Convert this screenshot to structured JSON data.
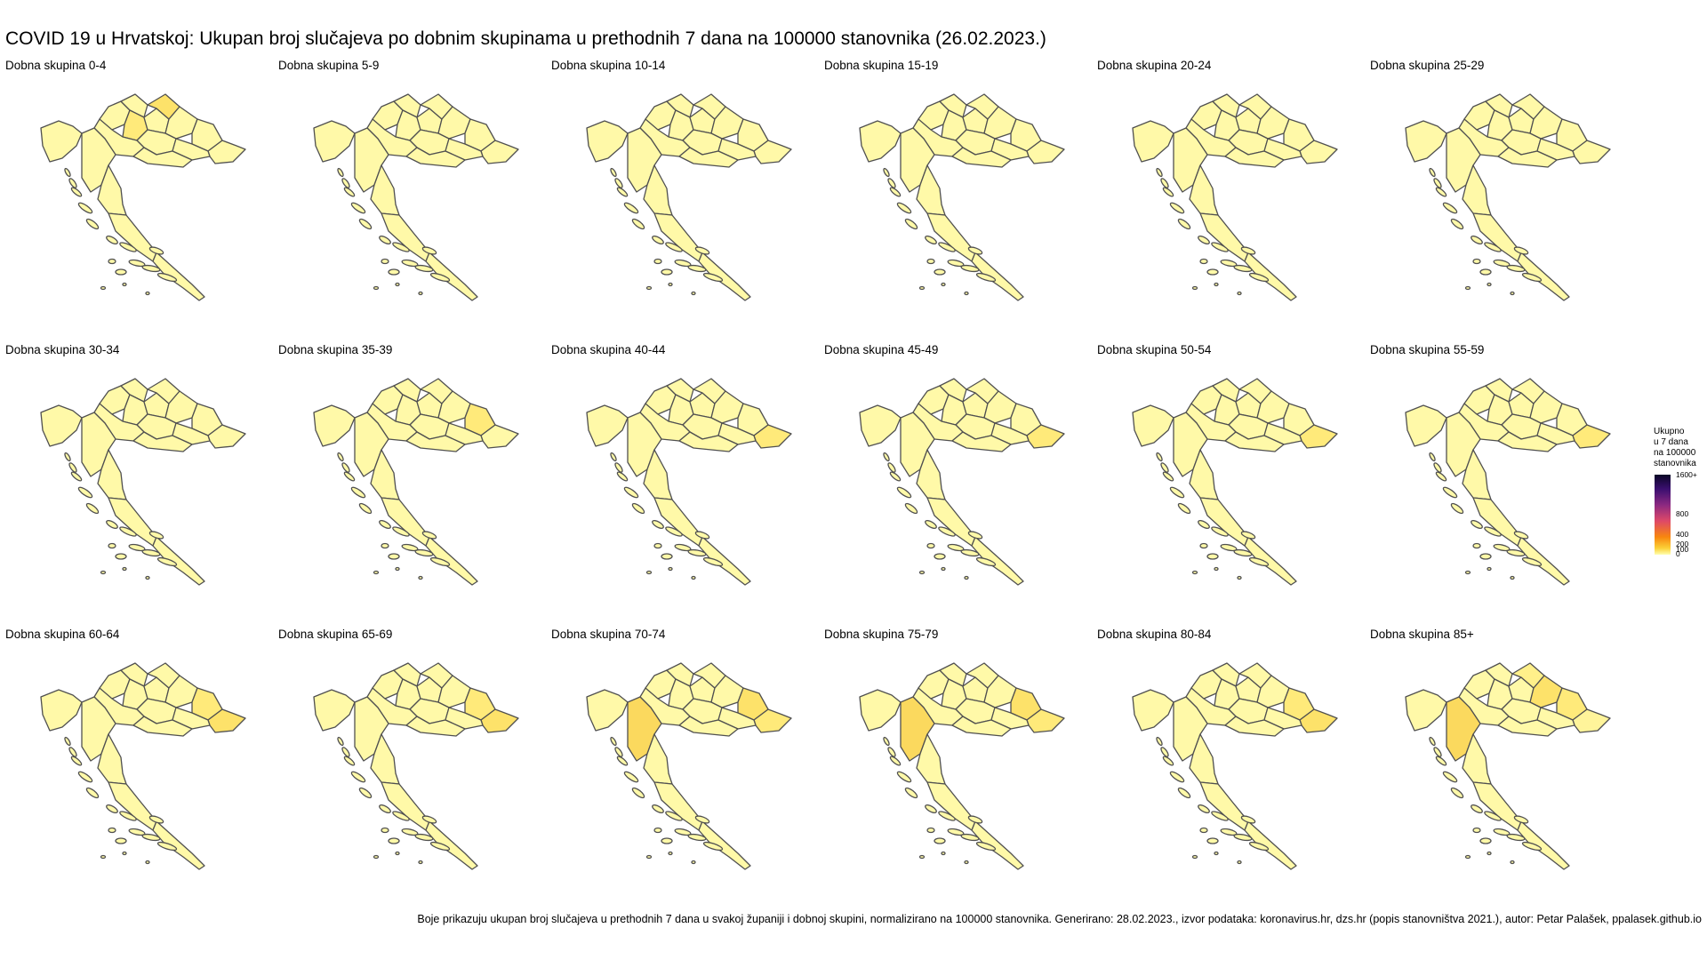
{
  "title": "COVID 19 u Hrvatskoj: Ukupan broj slučajeva po dobnim skupinama u prethodnih 7 dana na 100000 stanovnika (26.02.2023.)",
  "footer": "Boje prikazuju ukupan broj slučajeva u prethodnih 7 dana u svakoj županiji i dobnoj skupini, normalizirano na 100000 stanovnika. Generirano: 28.02.2023., izvor podataka: koronavirus.hr, dzs.hr (popis stanovništva 2021.), autor: Petar Palašek, ppalasek.github.io",
  "legend": {
    "title_lines": [
      "Ukupno",
      "u 7 dana",
      "na 100000",
      "stanovnika"
    ],
    "ticks": [
      "1600+",
      "800",
      "400",
      "200",
      "100",
      "0"
    ],
    "color_low": "#ffffb0",
    "color_high": "#0b0626"
  },
  "panels": [
    {
      "label": "Dobna skupina  0-4",
      "hot": [
        2,
        4
      ]
    },
    {
      "label": "Dobna skupina  5-9",
      "hot": []
    },
    {
      "label": "Dobna skupina 10-14",
      "hot": []
    },
    {
      "label": "Dobna skupina 15-19",
      "hot": []
    },
    {
      "label": "Dobna skupina 20-24",
      "hot": []
    },
    {
      "label": "Dobna skupina 25-29",
      "hot": []
    },
    {
      "label": "Dobna skupina 30-34",
      "hot": []
    },
    {
      "label": "Dobna skupina 35-39",
      "hot": [
        6
      ]
    },
    {
      "label": "Dobna skupina 40-44",
      "hot": [
        8
      ]
    },
    {
      "label": "Dobna skupina 45-49",
      "hot": [
        8
      ]
    },
    {
      "label": "Dobna skupina 50-54",
      "hot": [
        8
      ]
    },
    {
      "label": "Dobna skupina 55-59",
      "hot": [
        8
      ]
    },
    {
      "label": "Dobna skupina 60-64",
      "hot": [
        6,
        8
      ]
    },
    {
      "label": "Dobna skupina 65-69",
      "hot": [
        6,
        8
      ]
    },
    {
      "label": "Dobna skupina 70-74",
      "hot": [
        8,
        6,
        12
      ]
    },
    {
      "label": "Dobna skupina 75-79",
      "hot": [
        8,
        6,
        12
      ]
    },
    {
      "label": "Dobna skupina 80-84",
      "hot": [
        6,
        8
      ]
    },
    {
      "label": "Dobna skupina 85+",
      "hot": [
        8,
        4,
        6,
        5,
        12
      ]
    }
  ]
}
